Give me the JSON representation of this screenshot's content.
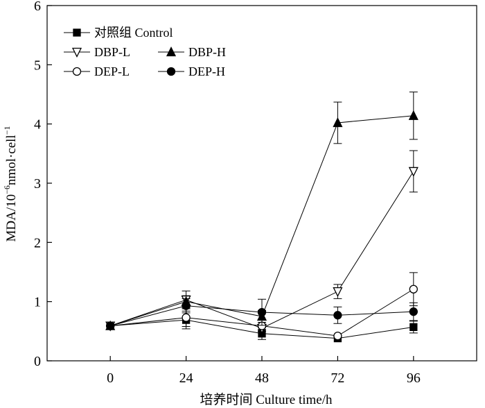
{
  "chart_data": {
    "type": "line",
    "xlabel": "培养时间 Culture time/h",
    "ylabel_main": "MDA/10",
    "ylabel_exp": "−6",
    "ylabel_units": "nmol·cell",
    "ylabel_units_exp": "−1",
    "x": [
      0,
      24,
      48,
      72,
      96
    ],
    "xlim": [
      -20,
      116
    ],
    "ylim": [
      0,
      6
    ],
    "xticks": [
      "0",
      "24",
      "48",
      "72",
      "96"
    ],
    "yticks": [
      "0",
      "1",
      "2",
      "3",
      "4",
      "5",
      "6"
    ],
    "grid": false,
    "legend_position": "top-left",
    "series": [
      {
        "name": "对照组 Control",
        "marker": "square-filled",
        "values": [
          0.59,
          0.69,
          0.46,
          0.38,
          0.57
        ],
        "errors": [
          0.03,
          0.15,
          0.1,
          0.03,
          0.1
        ]
      },
      {
        "name": "DBP-L",
        "marker": "triangle-down-open",
        "values": [
          0.59,
          1.03,
          0.55,
          1.17,
          3.2
        ],
        "errors": [
          0.03,
          0.15,
          0.05,
          0.12,
          0.35
        ]
      },
      {
        "name": "DBP-H",
        "marker": "triangle-up-filled",
        "values": [
          0.59,
          1.0,
          0.75,
          4.02,
          4.14
        ],
        "errors": [
          0.03,
          0.1,
          0.1,
          0.35,
          0.4
        ]
      },
      {
        "name": "DEP-L",
        "marker": "circle-open",
        "values": [
          0.59,
          0.73,
          0.59,
          0.42,
          1.21
        ],
        "errors": [
          0.03,
          0.15,
          0.06,
          0.03,
          0.28
        ]
      },
      {
        "name": "DEP-H",
        "marker": "circle-filled",
        "values": [
          0.59,
          0.93,
          0.82,
          0.77,
          0.83
        ],
        "errors": [
          0.03,
          0.12,
          0.22,
          0.14,
          0.15
        ]
      }
    ]
  }
}
